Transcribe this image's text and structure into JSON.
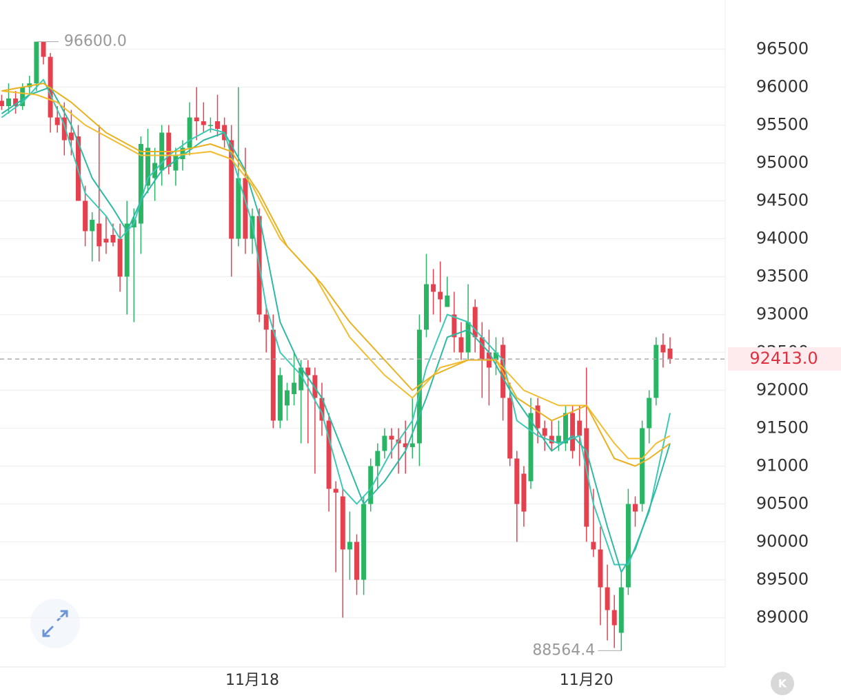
{
  "chart_data": {
    "type": "candlestick",
    "categories": [
      null,
      null,
      null,
      null,
      null,
      null,
      null,
      null,
      null,
      null,
      null,
      null,
      null,
      null,
      null,
      null,
      null,
      null,
      null,
      null,
      null,
      null,
      null,
      null,
      null,
      null,
      null,
      null,
      null,
      null,
      null,
      null,
      null,
      null,
      null,
      null,
      "11月18",
      null,
      null,
      null,
      null,
      null,
      null,
      null,
      null,
      null,
      null,
      null,
      null,
      null,
      null,
      null,
      null,
      null,
      null,
      null,
      null,
      null,
      null,
      null,
      null,
      null,
      null,
      null,
      null,
      null,
      null,
      null,
      null,
      null,
      null,
      null,
      null,
      null,
      null,
      null,
      null,
      null,
      null,
      null,
      null,
      null,
      null,
      null,
      "11月20",
      null,
      null,
      null,
      null,
      null,
      null,
      null,
      null,
      null,
      null,
      null,
      null
    ],
    "open": [
      95820,
      95750,
      95850,
      95750,
      96000,
      96050,
      96600,
      96400,
      95600,
      95600,
      95400,
      95350,
      94500,
      94100,
      94200,
      94000,
      94050,
      94000,
      93500,
      94150,
      94200,
      94700,
      94800,
      94900,
      95400,
      94900,
      95050,
      95200,
      95600,
      95550,
      95500,
      95550,
      95500,
      95300,
      94000,
      94800,
      94000,
      94300,
      93000,
      92800,
      91600,
      91800,
      91950,
      92000,
      92300,
      92200,
      91900,
      91600,
      90700,
      90600,
      89900,
      90000,
      89500,
      90500,
      91000,
      91200,
      91400,
      91350,
      91300,
      91250,
      91300,
      92800,
      93400,
      93300,
      93100,
      93000,
      92700,
      92500,
      93100,
      92700,
      92500,
      92400,
      92600,
      91900,
      91100,
      90900,
      90800,
      91800,
      91500,
      91400,
      91300,
      91300,
      91700,
      91600,
      91500,
      90000,
      89900,
      89400,
      89100,
      88800,
      89400,
      90500,
      90500,
      91500,
      91900,
      92600,
      92550
    ],
    "high": [
      95900,
      96050,
      95950,
      96050,
      96150,
      96600,
      96600,
      96450,
      95750,
      95800,
      95700,
      95500,
      94700,
      94350,
      95500,
      94300,
      94200,
      94200,
      94500,
      94400,
      95350,
      95450,
      95200,
      95500,
      95500,
      95200,
      95300,
      95800,
      96000,
      95800,
      95600,
      95900,
      95600,
      95500,
      96000,
      95200,
      94400,
      94400,
      93100,
      93000,
      92300,
      92100,
      92500,
      92400,
      92400,
      92300,
      92100,
      91700,
      90800,
      90700,
      90400,
      90100,
      90600,
      91100,
      91300,
      91500,
      91500,
      91500,
      91600,
      91900,
      93000,
      93800,
      93600,
      93700,
      93500,
      93300,
      92900,
      93400,
      93200,
      92900,
      92800,
      92700,
      92700,
      92100,
      91200,
      91000,
      91900,
      91900,
      91600,
      91600,
      91600,
      91800,
      91800,
      91800,
      92300,
      90700,
      90200,
      89700,
      89300,
      89600,
      90700,
      90600,
      91600,
      92000,
      92700,
      92750,
      92700
    ],
    "low": [
      95700,
      95650,
      95650,
      95700,
      95900,
      95950,
      96300,
      95400,
      95400,
      95100,
      95100,
      94500,
      93900,
      93700,
      93700,
      93800,
      93900,
      93300,
      93000,
      92900,
      93800,
      94600,
      94500,
      94700,
      94850,
      94700,
      94900,
      95100,
      95300,
      95400,
      95400,
      95350,
      95200,
      93500,
      93900,
      93800,
      93800,
      92900,
      92500,
      91500,
      91500,
      91600,
      91800,
      91300,
      91300,
      90900,
      91400,
      90400,
      89600,
      89000,
      89500,
      89300,
      89300,
      90400,
      90700,
      91100,
      91100,
      90900,
      90900,
      91100,
      91000,
      92700,
      93000,
      92900,
      93100,
      92500,
      92400,
      92400,
      92500,
      91900,
      91800,
      92200,
      91600,
      91000,
      90000,
      90200,
      90700,
      91300,
      91200,
      91200,
      91200,
      91200,
      91100,
      91000,
      90000,
      89800,
      88900,
      88700,
      88600,
      88564.4,
      89300,
      90200,
      90400,
      91300,
      91800,
      92300,
      92350
    ],
    "close": [
      95750,
      95850,
      95750,
      96000,
      96050,
      96600,
      96400,
      95600,
      95500,
      95300,
      95300,
      94500,
      94100,
      94250,
      93900,
      93950,
      93950,
      93500,
      94200,
      94250,
      95250,
      95200,
      95000,
      95400,
      94950,
      95100,
      95200,
      95600,
      95550,
      95500,
      95500,
      95450,
      95300,
      94000,
      94800,
      94000,
      94300,
      93000,
      92800,
      91600,
      92200,
      92000,
      92100,
      92300,
      92200,
      91900,
      91600,
      90700,
      90650,
      89900,
      90000,
      89500,
      90500,
      91000,
      91200,
      91400,
      91350,
      91300,
      91250,
      91300,
      92800,
      93400,
      93300,
      93200,
      93250,
      92700,
      92500,
      92900,
      92700,
      92400,
      92300,
      92500,
      91900,
      91100,
      90500,
      90400,
      91700,
      91500,
      91400,
      91300,
      91400,
      91700,
      91200,
      91400,
      90200,
      89900,
      89400,
      89100,
      88900,
      89400,
      90500,
      90400,
      91500,
      91900,
      92600,
      92500,
      92413
    ],
    "up_color": "#2ab565",
    "down_color": "#e5404e",
    "overlays": [
      {
        "color": "#3cc9b4",
        "x": [
          0,
          3,
          6,
          9,
          12,
          15,
          17,
          19,
          21,
          24,
          27,
          30,
          32,
          34,
          36,
          38,
          40,
          43,
          46,
          49,
          51,
          53,
          56,
          59,
          61,
          64,
          67,
          70,
          72,
          74,
          77,
          80,
          83,
          85,
          88,
          90,
          93,
          96
        ],
        "values": [
          95600,
          95800,
          96100,
          95500,
          94600,
          94300,
          94000,
          94200,
          94800,
          95100,
          95300,
          95450,
          95400,
          94800,
          94200,
          93100,
          92500,
          92200,
          91700,
          90700,
          90500,
          90700,
          91200,
          91600,
          92300,
          93000,
          92900,
          92600,
          92400,
          91600,
          91400,
          91300,
          91400,
          90500,
          89700,
          89700,
          90400,
          91700
        ]
      },
      {
        "color": "#2fb9a3",
        "x": [
          0,
          4,
          7,
          10,
          13,
          16,
          18,
          20,
          23,
          26,
          29,
          32,
          35,
          37,
          40,
          43,
          46,
          49,
          52,
          55,
          58,
          61,
          64,
          67,
          70,
          73,
          76,
          79,
          82,
          84,
          87,
          89,
          91,
          94,
          96
        ],
        "values": [
          95650,
          95900,
          96000,
          95500,
          94800,
          94400,
          94100,
          94500,
          94900,
          95100,
          95300,
          95400,
          94900,
          94300,
          92900,
          92300,
          91900,
          91200,
          90500,
          90800,
          91200,
          91900,
          92700,
          92800,
          92500,
          92000,
          91600,
          91200,
          91400,
          91200,
          90200,
          89600,
          89900,
          90700,
          91300
        ]
      },
      {
        "color": "#f2bc2e",
        "x": [
          0,
          5,
          8,
          12,
          16,
          20,
          25,
          30,
          33,
          36,
          40,
          45,
          50,
          55,
          59,
          63,
          67,
          71,
          75,
          80,
          84,
          88,
          90,
          92,
          94,
          96
        ],
        "values": [
          95950,
          95900,
          95800,
          95500,
          95300,
          95100,
          95100,
          95150,
          95050,
          94700,
          94000,
          93500,
          92700,
          92200,
          91900,
          92300,
          92400,
          92400,
          92000,
          91800,
          91800,
          91300,
          91100,
          91100,
          91300,
          91400
        ]
      },
      {
        "color": "#e9b11f",
        "x": [
          0,
          6,
          10,
          15,
          20,
          25,
          30,
          33,
          37,
          41,
          46,
          50,
          55,
          59,
          62,
          67,
          71,
          74,
          79,
          84,
          88,
          91,
          93,
          96
        ],
        "values": [
          95950,
          96050,
          95800,
          95400,
          95150,
          95150,
          95250,
          95150,
          94600,
          93900,
          93400,
          92900,
          92400,
          92000,
          92200,
          92400,
          92400,
          91900,
          91600,
          91800,
          91100,
          91000,
          91100,
          91300
        ]
      }
    ],
    "ylim": [
      88350,
      97150
    ],
    "yticks": [
      89000,
      89500,
      90000,
      90500,
      91000,
      91500,
      92000,
      92500,
      93000,
      93500,
      94000,
      94500,
      95000,
      95500,
      96000,
      96500
    ],
    "grid": true,
    "max_label": "96600.0",
    "min_label": "88564.4",
    "last_price_label": "92413.0"
  }
}
